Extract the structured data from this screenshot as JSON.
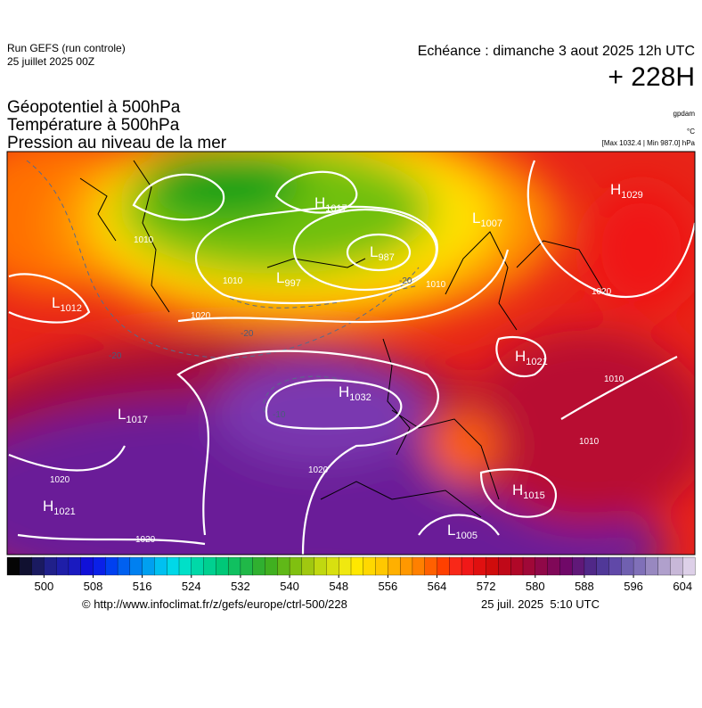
{
  "header": {
    "run": "Run GEFS (run controle)",
    "date": "25 juillet 2025 00Z",
    "echeance": "Echéance : dimanche 3 aout 2025 12h UTC",
    "lead": "+ 228H"
  },
  "titles": [
    "Géopotentiel à 500hPa",
    "Température à 500hPa",
    "Pression au niveau de la mer"
  ],
  "units": {
    "geopotential": "gpdam",
    "temperature": "°C",
    "pressure": "[Max 1032.4 | Min 987.0] hPa"
  },
  "centers": [
    {
      "letter": "L",
      "value": "1012"
    },
    {
      "letter": "L",
      "value": "1007"
    },
    {
      "letter": "H",
      "value": "1029"
    },
    {
      "letter": "H",
      "value": "1017"
    },
    {
      "letter": "L",
      "value": "987"
    },
    {
      "letter": "L",
      "value": "997"
    },
    {
      "letter": "H",
      "value": "1032"
    },
    {
      "letter": "H",
      "value": "1021"
    },
    {
      "letter": "L",
      "value": "1017"
    },
    {
      "letter": "H",
      "value": "1021"
    },
    {
      "letter": "H",
      "value": "1015"
    },
    {
      "letter": "L",
      "value": "1005"
    }
  ],
  "isobar_labels": [
    "1020",
    "1020",
    "1020",
    "1020",
    "1020",
    "1010",
    "1010",
    "1010",
    "1010",
    "1010"
  ],
  "temperature_labels": [
    "-20",
    "-20",
    "-20",
    "-10"
  ],
  "colorbar": {
    "lim": [
      494,
      606
    ],
    "ticks": [
      500,
      508,
      516,
      524,
      532,
      540,
      548,
      556,
      564,
      572,
      580,
      588,
      596,
      604
    ],
    "palette": [
      "#050505",
      "#101030",
      "#1a1a60",
      "#20208a",
      "#1e1ea8",
      "#1a1ac0",
      "#1010d8",
      "#0a20e8",
      "#0040f0",
      "#0060f0",
      "#0080f0",
      "#00a0f0",
      "#00c0f0",
      "#00d8e8",
      "#00e0c8",
      "#00d8a8",
      "#00d090",
      "#00c878",
      "#10c060",
      "#20b848",
      "#30b030",
      "#40b020",
      "#60b818",
      "#80c010",
      "#a0c810",
      "#c0d810",
      "#d8e010",
      "#f0e810",
      "#ffe800",
      "#ffd800",
      "#ffc800",
      "#ffb000",
      "#ff9800",
      "#ff8000",
      "#ff6000",
      "#ff4000",
      "#f82818",
      "#f01818",
      "#e01010",
      "#d00c0c",
      "#c00818",
      "#b00828",
      "#a00838",
      "#900848",
      "#800858",
      "#700868",
      "#601878",
      "#502888",
      "#503898",
      "#6048a8",
      "#7060b0",
      "#8070b8",
      "#9888c0",
      "#b0a0cc",
      "#c8b8d8",
      "#ddd0e8"
    ]
  },
  "footer": {
    "source": "© http://www.infoclimat.fr/z/gefs/europe/ctrl-500/228",
    "time": "25 juil. 2025  5:10 UTC"
  }
}
